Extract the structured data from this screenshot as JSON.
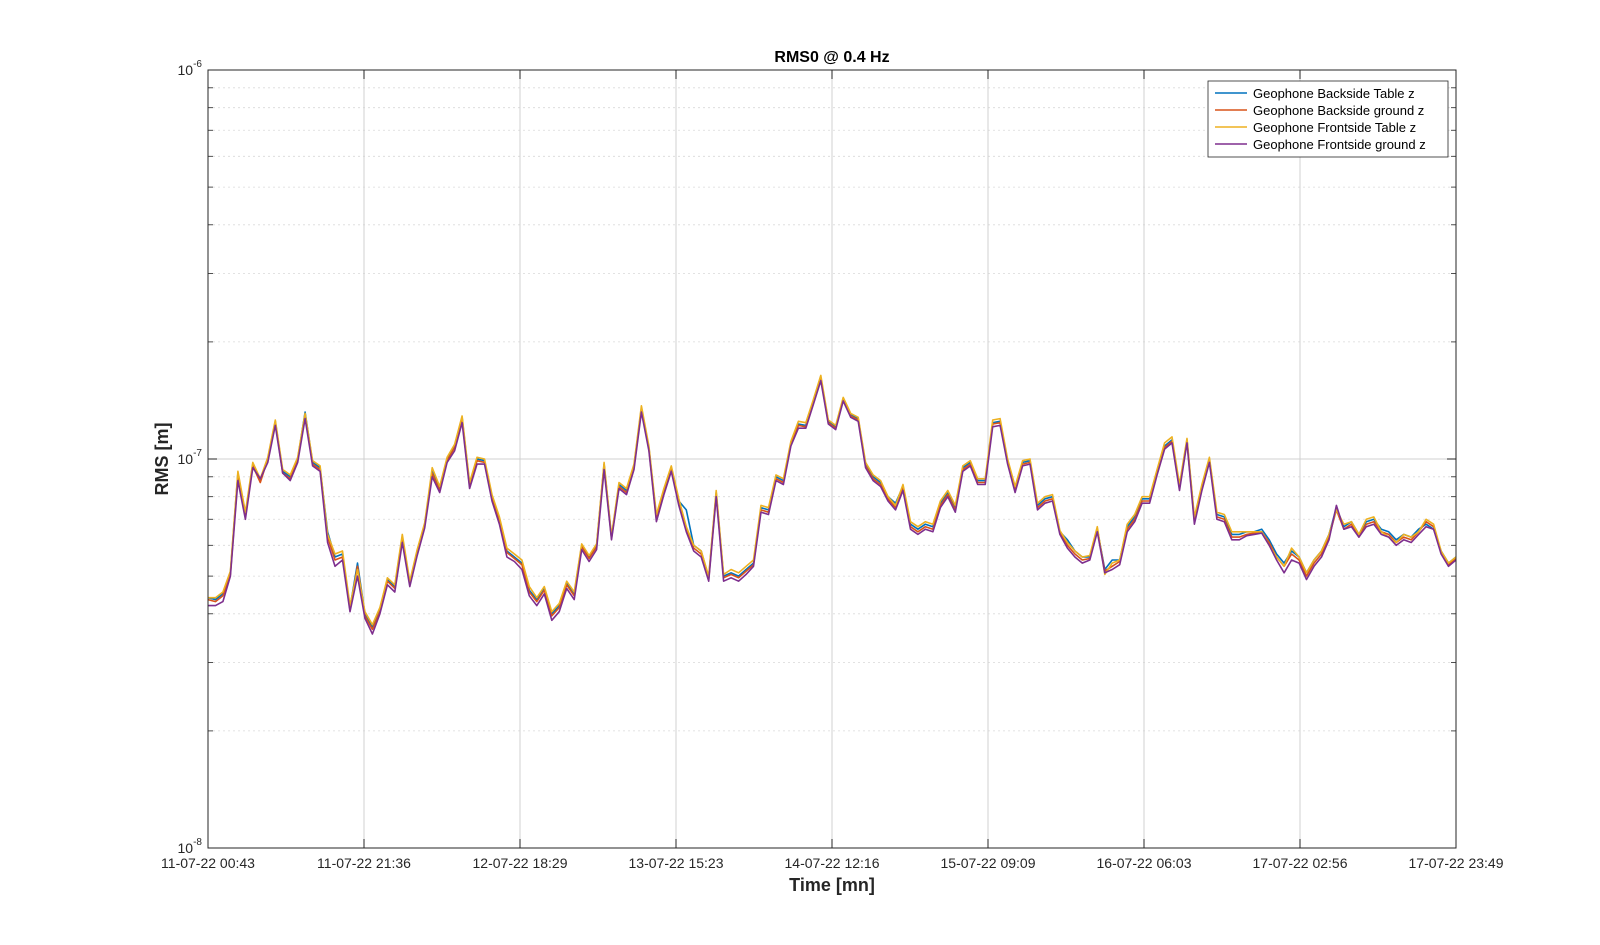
{
  "chart_data": {
    "type": "line",
    "title": "RMS0 @ 0.4 Hz",
    "xlabel": "Time [mn]",
    "ylabel": "RMS [m]",
    "yscale": "log",
    "ylim": [
      1e-08,
      1e-06
    ],
    "y_ticks": [
      {
        "base": "10",
        "exp": "-6",
        "value": 1e-06
      },
      {
        "base": "10",
        "exp": "-7",
        "value": 1e-07
      },
      {
        "base": "10",
        "exp": "-8",
        "value": 1e-08
      }
    ],
    "x_tick_labels": [
      "11-07-22 00:43",
      "11-07-22 21:36",
      "12-07-22 18:29",
      "13-07-22 15:23",
      "14-07-22 12:16",
      "15-07-22 09:09",
      "16-07-22 06:03",
      "17-07-22 02:56",
      "17-07-22 23:49"
    ],
    "grid": true,
    "legend_position": "top-right",
    "x_sample_interval_minutes": 60,
    "series": [
      {
        "name": "Geophone Backside Table z",
        "color": "#0072BD",
        "values": [
          4.4e-08,
          4.35e-08,
          4.5e-08,
          5.1e-08,
          9.2e-08,
          7.2e-08,
          9.7e-08,
          8.8e-08,
          1e-07,
          1.25e-07,
          9.3e-08,
          9e-08,
          1e-07,
          1.32e-07,
          9.8e-08,
          9.5e-08,
          6.5e-08,
          5.6e-08,
          5.7e-08,
          4.15e-08,
          5.4e-08,
          4e-08,
          3.7e-08,
          4.1e-08,
          4.9e-08,
          4.7e-08,
          6.3e-08,
          4.8e-08,
          5.8e-08,
          6.8e-08,
          9.3e-08,
          8.4e-08,
          1e-07,
          1.08e-07,
          1.28e-07,
          8.6e-08,
          1e-07,
          9.9e-08,
          8e-08,
          7e-08,
          5.8e-08,
          5.6e-08,
          5.4e-08,
          4.6e-08,
          4.35e-08,
          4.65e-08,
          4e-08,
          4.2e-08,
          4.8e-08,
          4.5e-08,
          6e-08,
          5.6e-08,
          6e-08,
          9.7e-08,
          6.3e-08,
          8.6e-08,
          8.3e-08,
          9.6e-08,
          1.35e-07,
          1.07e-07,
          7.1e-08,
          8.3e-08,
          9.5e-08,
          7.8e-08,
          7.4e-08,
          6e-08,
          5.8e-08,
          4.95e-08,
          8.2e-08,
          5e-08,
          5.1e-08,
          5e-08,
          5.2e-08,
          5.4e-08,
          7.5e-08,
          7.4e-08,
          9e-08,
          8.8e-08,
          1.1e-07,
          1.23e-07,
          1.22e-07,
          1.4e-07,
          1.62e-07,
          1.25e-07,
          1.21e-07,
          1.43e-07,
          1.3e-07,
          1.27e-07,
          9.7e-08,
          9e-08,
          8.7e-08,
          8e-08,
          7.7e-08,
          8.5e-08,
          6.8e-08,
          6.6e-08,
          6.8e-08,
          6.7e-08,
          7.7e-08,
          8.2e-08,
          7.5e-08,
          9.5e-08,
          9.8e-08,
          8.8e-08,
          8.8e-08,
          1.24e-07,
          1.25e-07,
          9.9e-08,
          8.4e-08,
          9.8e-08,
          9.9e-08,
          7.6e-08,
          7.9e-08,
          8e-08,
          6.5e-08,
          6.2e-08,
          5.8e-08,
          5.6e-08,
          5.6e-08,
          6.6e-08,
          5.2e-08,
          5.5e-08,
          5.5e-08,
          6.7e-08,
          7.1e-08,
          7.9e-08,
          7.9e-08,
          9.3e-08,
          1.08e-07,
          1.12e-07,
          8.5e-08,
          1.12e-07,
          7e-08,
          8.5e-08,
          1e-07,
          7.2e-08,
          7.1e-08,
          6.4e-08,
          6.4e-08,
          6.5e-08,
          6.5e-08,
          6.6e-08,
          6.2e-08,
          5.7e-08,
          5.4e-08,
          5.8e-08,
          5.6e-08,
          5.1e-08,
          5.5e-08,
          5.8e-08,
          6.4e-08,
          7.5e-08,
          6.7e-08,
          6.9e-08,
          6.4e-08,
          6.9e-08,
          7e-08,
          6.6e-08,
          6.5e-08,
          6.2e-08,
          6.4e-08,
          6.3e-08,
          6.6e-08,
          6.8e-08,
          6.6e-08,
          5.8e-08,
          5.4e-08,
          5.6e-08
        ]
      },
      {
        "name": "Geophone Backside ground z",
        "color": "#D95319",
        "values": [
          4.35e-08,
          4.3e-08,
          4.45e-08,
          5.05e-08,
          9e-08,
          7.1e-08,
          9.6e-08,
          8.7e-08,
          1e-07,
          1.24e-07,
          9.2e-08,
          8.9e-08,
          1e-07,
          1.3e-07,
          9.7e-08,
          9.4e-08,
          6.3e-08,
          5.5e-08,
          5.6e-08,
          4.1e-08,
          5.3e-08,
          3.95e-08,
          3.65e-08,
          4.05e-08,
          4.85e-08,
          4.65e-08,
          6.2e-08,
          4.75e-08,
          5.75e-08,
          6.75e-08,
          9.2e-08,
          8.3e-08,
          9.9e-08,
          1.07e-07,
          1.26e-07,
          8.5e-08,
          9.9e-08,
          9.8e-08,
          7.9e-08,
          6.9e-08,
          5.75e-08,
          5.55e-08,
          5.35e-08,
          4.55e-08,
          4.3e-08,
          4.6e-08,
          3.95e-08,
          4.15e-08,
          4.75e-08,
          4.45e-08,
          5.95e-08,
          5.55e-08,
          5.95e-08,
          9.6e-08,
          6.25e-08,
          8.5e-08,
          8.2e-08,
          9.5e-08,
          1.34e-07,
          1.06e-07,
          7e-08,
          8.2e-08,
          9.4e-08,
          7.7e-08,
          6.6e-08,
          5.9e-08,
          5.7e-08,
          4.9e-08,
          8.1e-08,
          4.95e-08,
          5.05e-08,
          4.95e-08,
          5.15e-08,
          5.35e-08,
          7.4e-08,
          7.3e-08,
          8.9e-08,
          8.7e-08,
          1.09e-07,
          1.22e-07,
          1.21e-07,
          1.39e-07,
          1.61e-07,
          1.24e-07,
          1.2e-07,
          1.42e-07,
          1.29e-07,
          1.26e-07,
          9.6e-08,
          8.9e-08,
          8.6e-08,
          7.9e-08,
          7.5e-08,
          8.4e-08,
          6.7e-08,
          6.5e-08,
          6.7e-08,
          6.6e-08,
          7.6e-08,
          8.1e-08,
          7.4e-08,
          9.4e-08,
          9.7e-08,
          8.7e-08,
          8.7e-08,
          1.23e-07,
          1.24e-07,
          9.8e-08,
          8.3e-08,
          9.7e-08,
          9.8e-08,
          7.5e-08,
          7.8e-08,
          7.9e-08,
          6.45e-08,
          6e-08,
          5.7e-08,
          5.5e-08,
          5.55e-08,
          6.6e-08,
          5.15e-08,
          5.3e-08,
          5.45e-08,
          6.6e-08,
          7e-08,
          7.8e-08,
          7.8e-08,
          9.2e-08,
          1.07e-07,
          1.11e-07,
          8.4e-08,
          1.11e-07,
          6.9e-08,
          8.4e-08,
          9.9e-08,
          7.1e-08,
          7e-08,
          6.3e-08,
          6.3e-08,
          6.4e-08,
          6.45e-08,
          6.5e-08,
          6.1e-08,
          5.6e-08,
          5.3e-08,
          5.7e-08,
          5.5e-08,
          5e-08,
          5.4e-08,
          5.7e-08,
          6.3e-08,
          7.4e-08,
          6.6e-08,
          6.8e-08,
          6.3e-08,
          6.8e-08,
          6.9e-08,
          6.5e-08,
          6.4e-08,
          6.1e-08,
          6.3e-08,
          6.2e-08,
          6.5e-08,
          6.9e-08,
          6.7e-08,
          5.75e-08,
          5.35e-08,
          5.55e-08
        ]
      },
      {
        "name": "Geophone Frontside Table z",
        "color": "#EDB120",
        "values": [
          4.4e-08,
          4.4e-08,
          4.55e-08,
          5.15e-08,
          9.3e-08,
          7.3e-08,
          9.8e-08,
          8.9e-08,
          1.01e-07,
          1.26e-07,
          9.4e-08,
          9.1e-08,
          1.01e-07,
          1.31e-07,
          9.9e-08,
          9.6e-08,
          6.4e-08,
          5.7e-08,
          5.8e-08,
          4.2e-08,
          5.2e-08,
          4.05e-08,
          3.75e-08,
          4.15e-08,
          4.95e-08,
          4.75e-08,
          6.4e-08,
          4.85e-08,
          5.85e-08,
          6.85e-08,
          9.5e-08,
          8.5e-08,
          1.01e-07,
          1.09e-07,
          1.29e-07,
          8.7e-08,
          1.01e-07,
          1e-07,
          8.1e-08,
          7.1e-08,
          5.9e-08,
          5.7e-08,
          5.5e-08,
          4.7e-08,
          4.4e-08,
          4.7e-08,
          4.05e-08,
          4.25e-08,
          4.85e-08,
          4.55e-08,
          6.05e-08,
          5.65e-08,
          6.05e-08,
          9.8e-08,
          6.35e-08,
          8.7e-08,
          8.4e-08,
          9.7e-08,
          1.37e-07,
          1.08e-07,
          7.2e-08,
          8.4e-08,
          9.6e-08,
          7.9e-08,
          6.7e-08,
          6e-08,
          5.8e-08,
          5e-08,
          8.3e-08,
          5.05e-08,
          5.2e-08,
          5.1e-08,
          5.3e-08,
          5.5e-08,
          7.6e-08,
          7.5e-08,
          9.1e-08,
          8.9e-08,
          1.11e-07,
          1.25e-07,
          1.24e-07,
          1.42e-07,
          1.64e-07,
          1.26e-07,
          1.22e-07,
          1.44e-07,
          1.31e-07,
          1.28e-07,
          9.8e-08,
          9.1e-08,
          8.8e-08,
          8e-08,
          7.6e-08,
          8.6e-08,
          6.9e-08,
          6.7e-08,
          6.9e-08,
          6.8e-08,
          7.8e-08,
          8.3e-08,
          7.6e-08,
          9.6e-08,
          9.9e-08,
          8.9e-08,
          8.9e-08,
          1.26e-07,
          1.27e-07,
          1e-07,
          8.5e-08,
          9.9e-08,
          1e-07,
          7.7e-08,
          8e-08,
          8.1e-08,
          6.55e-08,
          6.1e-08,
          5.8e-08,
          5.6e-08,
          5.65e-08,
          6.7e-08,
          5.05e-08,
          5.4e-08,
          5.5e-08,
          6.8e-08,
          7.2e-08,
          8e-08,
          8e-08,
          9.4e-08,
          1.1e-07,
          1.14e-07,
          8.6e-08,
          1.13e-07,
          7.1e-08,
          8.6e-08,
          1.01e-07,
          7.3e-08,
          7.2e-08,
          6.5e-08,
          6.5e-08,
          6.5e-08,
          6.5e-08,
          6.5e-08,
          6e-08,
          5.6e-08,
          5.3e-08,
          5.9e-08,
          5.6e-08,
          5.1e-08,
          5.5e-08,
          5.8e-08,
          6.4e-08,
          7.4e-08,
          6.8e-08,
          6.9e-08,
          6.4e-08,
          7e-08,
          7.1e-08,
          6.5e-08,
          6.3e-08,
          6.1e-08,
          6.4e-08,
          6.3e-08,
          6.5e-08,
          7e-08,
          6.8e-08,
          5.8e-08,
          5.4e-08,
          5.6e-08
        ]
      },
      {
        "name": "Geophone Frontside ground z",
        "color": "#7E2F8E",
        "values": [
          4.2e-08,
          4.2e-08,
          4.3e-08,
          5e-08,
          8.8e-08,
          7e-08,
          9.5e-08,
          8.9e-08,
          9.8e-08,
          1.22e-07,
          9.2e-08,
          8.8e-08,
          9.8e-08,
          1.27e-07,
          9.6e-08,
          9.3e-08,
          6.1e-08,
          5.3e-08,
          5.5e-08,
          4.05e-08,
          5e-08,
          3.9e-08,
          3.55e-08,
          4e-08,
          4.75e-08,
          4.55e-08,
          6.1e-08,
          4.7e-08,
          5.65e-08,
          6.65e-08,
          9e-08,
          8.2e-08,
          9.8e-08,
          1.05e-07,
          1.24e-07,
          8.4e-08,
          9.7e-08,
          9.7e-08,
          7.8e-08,
          6.8e-08,
          5.6e-08,
          5.45e-08,
          5.2e-08,
          4.45e-08,
          4.2e-08,
          4.5e-08,
          3.85e-08,
          4.05e-08,
          4.65e-08,
          4.35e-08,
          5.85e-08,
          5.45e-08,
          5.85e-08,
          9.4e-08,
          6.2e-08,
          8.4e-08,
          8.1e-08,
          9.4e-08,
          1.32e-07,
          1.05e-07,
          6.9e-08,
          8.1e-08,
          9.3e-08,
          7.6e-08,
          6.5e-08,
          5.8e-08,
          5.6e-08,
          4.85e-08,
          8e-08,
          4.85e-08,
          4.95e-08,
          4.85e-08,
          5.05e-08,
          5.3e-08,
          7.3e-08,
          7.2e-08,
          8.8e-08,
          8.6e-08,
          1.08e-07,
          1.2e-07,
          1.2e-07,
          1.38e-07,
          1.59e-07,
          1.23e-07,
          1.19e-07,
          1.41e-07,
          1.28e-07,
          1.25e-07,
          9.5e-08,
          8.8e-08,
          8.5e-08,
          7.8e-08,
          7.4e-08,
          8.3e-08,
          6.6e-08,
          6.4e-08,
          6.6e-08,
          6.5e-08,
          7.5e-08,
          8e-08,
          7.3e-08,
          9.3e-08,
          9.6e-08,
          8.6e-08,
          8.6e-08,
          1.21e-07,
          1.22e-07,
          9.7e-08,
          8.2e-08,
          9.6e-08,
          9.7e-08,
          7.4e-08,
          7.7e-08,
          7.8e-08,
          6.4e-08,
          5.9e-08,
          5.6e-08,
          5.4e-08,
          5.5e-08,
          6.5e-08,
          5.1e-08,
          5.2e-08,
          5.35e-08,
          6.5e-08,
          6.9e-08,
          7.7e-08,
          7.7e-08,
          9.1e-08,
          1.06e-07,
          1.1e-07,
          8.3e-08,
          1.1e-07,
          6.8e-08,
          8.3e-08,
          9.8e-08,
          7e-08,
          6.9e-08,
          6.2e-08,
          6.2e-08,
          6.35e-08,
          6.4e-08,
          6.45e-08,
          6e-08,
          5.5e-08,
          5.1e-08,
          5.5e-08,
          5.4e-08,
          4.9e-08,
          5.3e-08,
          5.6e-08,
          6.2e-08,
          7.6e-08,
          6.6e-08,
          6.7e-08,
          6.3e-08,
          6.7e-08,
          6.8e-08,
          6.4e-08,
          6.3e-08,
          6e-08,
          6.2e-08,
          6.1e-08,
          6.4e-08,
          6.7e-08,
          6.6e-08,
          5.7e-08,
          5.3e-08,
          5.5e-08
        ]
      }
    ]
  }
}
